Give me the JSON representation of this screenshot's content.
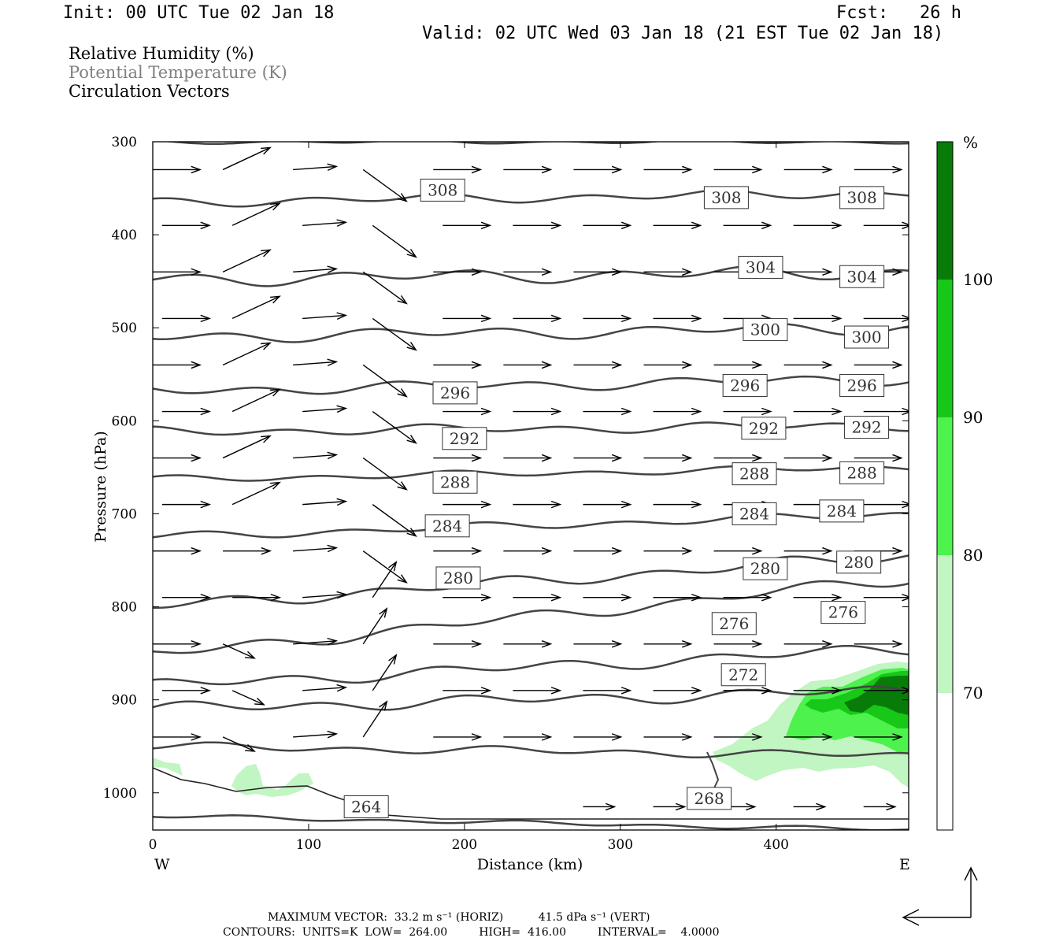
{
  "header": {
    "init": "Init: 00 UTC Tue 02 Jan 18",
    "fcst": "Fcst:   26 h",
    "valid": "Valid: 02 UTC Wed 03 Jan 18 (21 EST Tue 02 Jan 18)"
  },
  "legend": {
    "rh": "Relative Humidity (%)",
    "theta": "Potential Temperature (K)",
    "vec": "Circulation Vectors"
  },
  "footer": {
    "line1": "MAXIMUM VECTOR:  33.2 m s⁻¹ (HORIZ)          41.5 dPa s⁻¹ (VERT)",
    "line2": "CONTOURS:  UNITS=K  LOW=  264.00         HIGH=  416.00         INTERVAL=    4.0000"
  },
  "colors": {
    "contour": "#444444",
    "rh70": "#c1f5c1",
    "rh80": "#4df24d",
    "rh90": "#18c818",
    "rh100": "#087c08",
    "frame": "#000000",
    "legend_gray": "#808080"
  },
  "chart_data": {
    "type": "cross-section",
    "xlabel": "Distance (km)",
    "ylabel": "Pressure (hPa)",
    "xlim": [
      0,
      485
    ],
    "ylim": [
      1040,
      300
    ],
    "x_ticks": [
      0,
      100,
      200,
      300,
      400
    ],
    "y_ticks": [
      300,
      400,
      500,
      600,
      700,
      800,
      900,
      1000
    ],
    "x_end_labels": {
      "left": "W",
      "right": "E"
    },
    "colorbar": {
      "unit": "%",
      "levels": [
        70,
        80,
        90,
        100
      ]
    },
    "theta_levels": [
      264,
      268,
      272,
      276,
      280,
      284,
      288,
      292,
      296,
      300,
      304,
      308
    ],
    "contour_labels": [
      {
        "value": "308",
        "x": 186,
        "p": 352
      },
      {
        "value": "308",
        "x": 368,
        "p": 360
      },
      {
        "value": "308",
        "x": 455,
        "p": 360
      },
      {
        "value": "304",
        "x": 390,
        "p": 435
      },
      {
        "value": "304",
        "x": 455,
        "p": 445
      },
      {
        "value": "300",
        "x": 393,
        "p": 502
      },
      {
        "value": "300",
        "x": 458,
        "p": 510
      },
      {
        "value": "296",
        "x": 194,
        "p": 570
      },
      {
        "value": "296",
        "x": 380,
        "p": 562
      },
      {
        "value": "296",
        "x": 455,
        "p": 562
      },
      {
        "value": "292",
        "x": 200,
        "p": 619
      },
      {
        "value": "292",
        "x": 392,
        "p": 608
      },
      {
        "value": "292",
        "x": 458,
        "p": 607
      },
      {
        "value": "288",
        "x": 194,
        "p": 666
      },
      {
        "value": "288",
        "x": 386,
        "p": 657
      },
      {
        "value": "288",
        "x": 455,
        "p": 656
      },
      {
        "value": "284",
        "x": 189,
        "p": 713
      },
      {
        "value": "284",
        "x": 386,
        "p": 700
      },
      {
        "value": "284",
        "x": 442,
        "p": 697
      },
      {
        "value": "280",
        "x": 196,
        "p": 769
      },
      {
        "value": "280",
        "x": 393,
        "p": 759
      },
      {
        "value": "280",
        "x": 453,
        "p": 752
      },
      {
        "value": "276",
        "x": 373,
        "p": 818
      },
      {
        "value": "276",
        "x": 443,
        "p": 806
      },
      {
        "value": "272",
        "x": 379,
        "p": 873
      },
      {
        "value": "268",
        "x": 357,
        "p": 1006
      },
      {
        "value": "264",
        "x": 137,
        "p": 1015
      }
    ]
  }
}
